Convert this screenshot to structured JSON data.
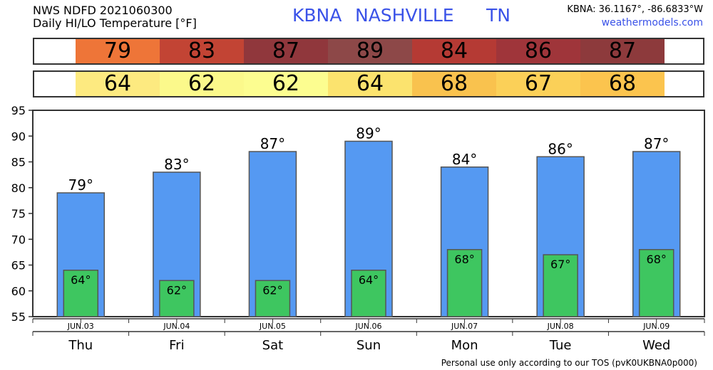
{
  "header": {
    "line1": "NWS NDFD 2021060300",
    "line2": "Daily HI/LO Temperature [°F]",
    "station_id": "KBNA",
    "station_city": "NASHVILLE",
    "station_state": "TN",
    "coords": "KBNA: 36.1167°, -86.6833°W",
    "site": "weathermodels.com"
  },
  "footer": {
    "text": "Personal use only according to our TOS (pvK0UKBNA0p000)"
  },
  "colors": {
    "high_bar": "#5599f2",
    "low_bar": "#3ec660",
    "high_row": [
      "#ee7538",
      "#c24434",
      "#90373c",
      "#8d4848",
      "#b53a34",
      "#9f353a",
      "#8d3a3c"
    ],
    "low_row": [
      "#fdea80",
      "#fbf98b",
      "#fcfd90",
      "#fbe36e",
      "#f9c24e",
      "#fbd058",
      "#fbc44e"
    ]
  },
  "chart_data": {
    "type": "bar",
    "categories": [
      "Thu",
      "Fri",
      "Sat",
      "Sun",
      "Mon",
      "Tue",
      "Wed"
    ],
    "dates": [
      "JUN.03",
      "JUN.04",
      "JUN.05",
      "JUN.06",
      "JUN.07",
      "JUN.08",
      "JUN.09"
    ],
    "series": [
      {
        "values": [
          79,
          83,
          87,
          89,
          84,
          86,
          87
        ]
      },
      {
        "values": [
          64,
          62,
          62,
          64,
          68,
          67,
          68
        ]
      }
    ],
    "ylim": [
      55,
      95
    ],
    "yticks": [
      55,
      60,
      65,
      70,
      75,
      80,
      85,
      90,
      95
    ],
    "grid": false,
    "high_labels": [
      "79°",
      "83°",
      "87°",
      "89°",
      "84°",
      "86°",
      "87°"
    ],
    "low_labels": [
      "64°",
      "62°",
      "62°",
      "64°",
      "68°",
      "67°",
      "68°"
    ]
  }
}
